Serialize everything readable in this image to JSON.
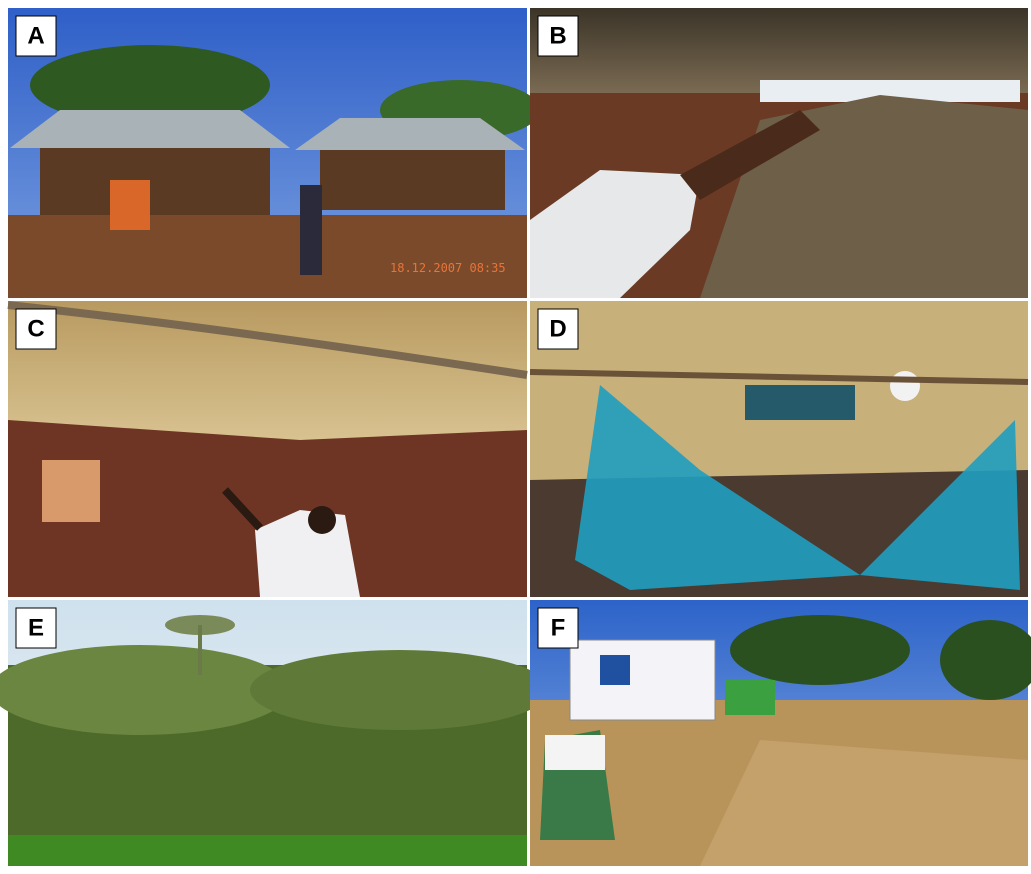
{
  "panels": [
    {
      "label": "A",
      "timestamp": "18.12.2007 08:35"
    },
    {
      "label": "B"
    },
    {
      "label": "C"
    },
    {
      "label": "D"
    },
    {
      "label": "E"
    },
    {
      "label": "F"
    }
  ]
}
